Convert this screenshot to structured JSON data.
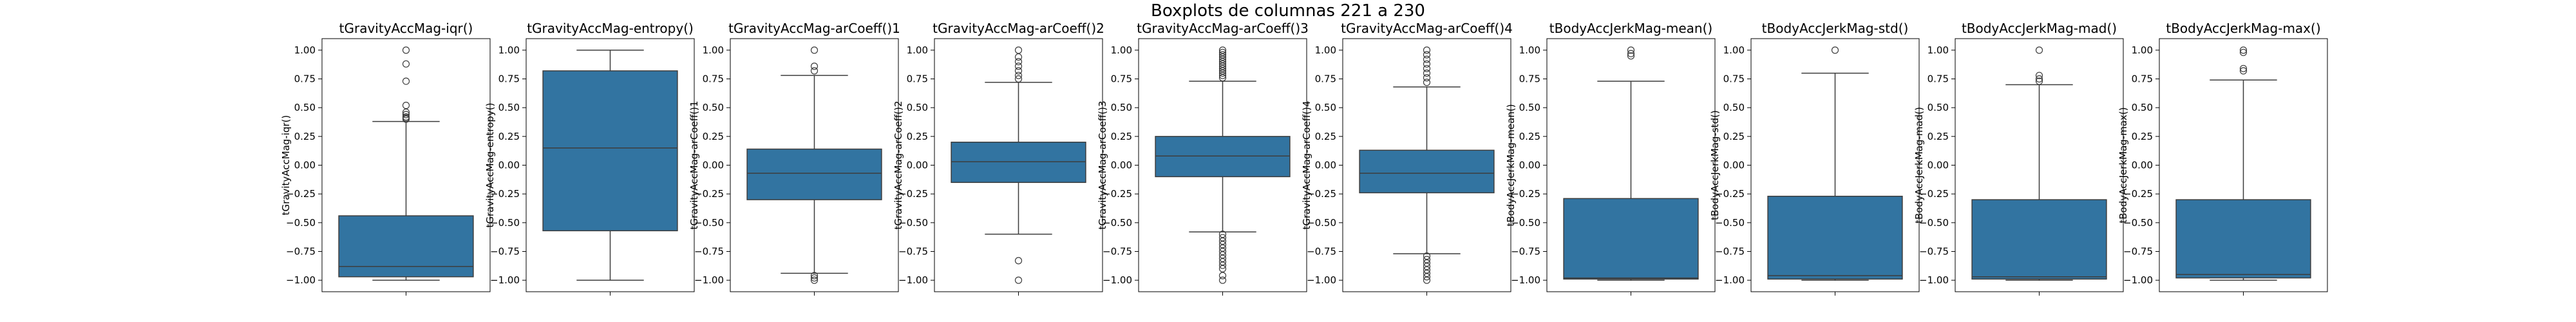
{
  "figure": {
    "suptitle": "Boxplots de columnas 221 a 230"
  },
  "chart_data": [
    {
      "type": "box",
      "title": "tGravityAccMag-iqr()",
      "ylabel": "tGravityAccMag-iqr()",
      "ylim": [
        -1.1,
        1.1
      ],
      "yticks": [
        1.0,
        0.75,
        0.5,
        0.25,
        0.0,
        -0.25,
        -0.5,
        -0.75,
        -1.0
      ],
      "yticklabels": [
        "1.00",
        "0.75",
        "0.50",
        "0.25",
        "0.00",
        "−0.25",
        "−0.50",
        "−0.75",
        "−1.00"
      ],
      "whisker_low": -1.0,
      "q1": -0.97,
      "median": -0.88,
      "q3": -0.44,
      "whisker_high": 0.38,
      "outliers": [
        1.0,
        0.88,
        0.73,
        0.52,
        0.46,
        0.44,
        0.42,
        0.41,
        0.4
      ],
      "color": "#3274a1"
    },
    {
      "type": "box",
      "title": "tGravityAccMag-entropy()",
      "ylabel": "tGravityAccMag-entropy()",
      "ylim": [
        -1.1,
        1.1
      ],
      "yticks": [
        1.0,
        0.75,
        0.5,
        0.25,
        0.0,
        -0.25,
        -0.5,
        -0.75,
        -1.0
      ],
      "yticklabels": [
        "1.00",
        "0.75",
        "0.50",
        "0.25",
        "0.00",
        "−0.25",
        "−0.50",
        "−0.75",
        "−1.00"
      ],
      "whisker_low": -1.0,
      "q1": -0.57,
      "median": 0.15,
      "q3": 0.82,
      "whisker_high": 1.0,
      "outliers": [],
      "color": "#3274a1"
    },
    {
      "type": "box",
      "title": "tGravityAccMag-arCoeff()1",
      "ylabel": "tGravityAccMag-arCoeff()1",
      "ylim": [
        -1.1,
        1.1
      ],
      "yticks": [
        1.0,
        0.75,
        0.5,
        0.25,
        0.0,
        -0.25,
        -0.5,
        -0.75,
        -1.0
      ],
      "yticklabels": [
        "1.00",
        "0.75",
        "0.50",
        "0.25",
        "0.00",
        "−0.25",
        "−0.50",
        "−0.75",
        "−1.00"
      ],
      "whisker_low": -0.94,
      "q1": -0.3,
      "median": -0.07,
      "q3": 0.14,
      "whisker_high": 0.78,
      "outliers": [
        1.0,
        0.86,
        0.82,
        -0.96,
        -0.98,
        -1.0
      ],
      "color": "#3274a1"
    },
    {
      "type": "box",
      "title": "tGravityAccMag-arCoeff()2",
      "ylabel": "tGravityAccMag-arCoeff()2",
      "ylim": [
        -1.1,
        1.1
      ],
      "yticks": [
        1.0,
        0.75,
        0.5,
        0.25,
        0.0,
        -0.25,
        -0.5,
        -0.75,
        -1.0
      ],
      "yticklabels": [
        "1.00",
        "0.75",
        "0.50",
        "0.25",
        "0.00",
        "−0.25",
        "−0.50",
        "−0.75",
        "−1.00"
      ],
      "whisker_low": -0.6,
      "q1": -0.15,
      "median": 0.03,
      "q3": 0.2,
      "whisker_high": 0.72,
      "outliers": [
        1.0,
        0.94,
        0.9,
        0.86,
        0.82,
        0.78,
        0.75,
        -0.83,
        -1.0
      ],
      "color": "#3274a1"
    },
    {
      "type": "box",
      "title": "tGravityAccMag-arCoeff()3",
      "ylabel": "tGravityAccMag-arCoeff()3",
      "ylim": [
        -1.1,
        1.1
      ],
      "yticks": [
        1.0,
        0.75,
        0.5,
        0.25,
        0.0,
        -0.25,
        -0.5,
        -0.75,
        -1.0
      ],
      "yticklabels": [
        "1.00",
        "0.75",
        "0.50",
        "0.25",
        "0.00",
        "−0.25",
        "−0.50",
        "−0.75",
        "−1.00"
      ],
      "whisker_low": -0.58,
      "q1": -0.1,
      "median": 0.08,
      "q3": 0.25,
      "whisker_high": 0.73,
      "outliers": [
        1.0,
        0.98,
        0.96,
        0.94,
        0.92,
        0.9,
        0.88,
        0.86,
        0.84,
        0.82,
        0.8,
        0.78,
        0.76,
        -0.6,
        -0.63,
        -0.66,
        -0.69,
        -0.72,
        -0.75,
        -0.78,
        -0.81,
        -0.84,
        -0.87,
        -0.9,
        -0.96,
        -1.0
      ],
      "color": "#3274a1"
    },
    {
      "type": "box",
      "title": "tGravityAccMag-arCoeff()4",
      "ylabel": "tGravityAccMag-arCoeff()4",
      "ylim": [
        -1.1,
        1.1
      ],
      "yticks": [
        1.0,
        0.75,
        0.5,
        0.25,
        0.0,
        -0.25,
        -0.5,
        -0.75,
        -1.0
      ],
      "yticklabels": [
        "1.00",
        "0.75",
        "0.50",
        "0.25",
        "0.00",
        "−0.25",
        "−0.50",
        "−0.75",
        "−1.00"
      ],
      "whisker_low": -0.77,
      "q1": -0.24,
      "median": -0.07,
      "q3": 0.13,
      "whisker_high": 0.68,
      "outliers": [
        1.0,
        0.96,
        0.92,
        0.88,
        0.84,
        0.8,
        0.76,
        0.72,
        -0.79,
        -0.82,
        -0.85,
        -0.88,
        -0.91,
        -0.94,
        -0.97,
        -1.0
      ],
      "color": "#3274a1"
    },
    {
      "type": "box",
      "title": "tBodyAccJerkMag-mean()",
      "ylabel": "tBodyAccJerkMag-mean()",
      "ylim": [
        -1.1,
        1.1
      ],
      "yticks": [
        1.0,
        0.75,
        0.5,
        0.25,
        0.0,
        -0.25,
        -0.5,
        -0.75,
        -1.0
      ],
      "yticklabels": [
        "1.00",
        "0.75",
        "0.50",
        "0.25",
        "0.00",
        "−0.25",
        "−0.50",
        "−0.75",
        "−1.00"
      ],
      "whisker_low": -1.0,
      "q1": -0.99,
      "median": -0.98,
      "q3": -0.29,
      "whisker_high": 0.73,
      "outliers": [
        1.0,
        0.97,
        0.95
      ],
      "color": "#3274a1"
    },
    {
      "type": "box",
      "title": "tBodyAccJerkMag-std()",
      "ylabel": "tBodyAccJerkMag-std()",
      "ylim": [
        -1.1,
        1.1
      ],
      "yticks": [
        1.0,
        0.75,
        0.5,
        0.25,
        0.0,
        -0.25,
        -0.5,
        -0.75,
        -1.0
      ],
      "yticklabels": [
        "1.00",
        "0.75",
        "0.50",
        "0.25",
        "0.00",
        "−0.25",
        "−0.50",
        "−0.75",
        "−1.00"
      ],
      "whisker_low": -1.0,
      "q1": -0.99,
      "median": -0.96,
      "q3": -0.27,
      "whisker_high": 0.8,
      "outliers": [
        1.0
      ],
      "color": "#3274a1"
    },
    {
      "type": "box",
      "title": "tBodyAccJerkMag-mad()",
      "ylabel": "tBodyAccJerkMag-mad()",
      "ylim": [
        -1.1,
        1.1
      ],
      "yticks": [
        1.0,
        0.75,
        0.5,
        0.25,
        0.0,
        -0.25,
        -0.5,
        -0.75,
        -1.0
      ],
      "yticklabels": [
        "1.00",
        "0.75",
        "0.50",
        "0.25",
        "0.00",
        "−0.25",
        "−0.50",
        "−0.75",
        "−1.00"
      ],
      "whisker_low": -1.0,
      "q1": -0.99,
      "median": -0.97,
      "q3": -0.3,
      "whisker_high": 0.7,
      "outliers": [
        1.0,
        0.78,
        0.75,
        0.73
      ],
      "color": "#3274a1"
    },
    {
      "type": "box",
      "title": "tBodyAccJerkMag-max()",
      "ylabel": "tBodyAccJerkMag-max()",
      "ylim": [
        -1.1,
        1.1
      ],
      "yticks": [
        1.0,
        0.75,
        0.5,
        0.25,
        0.0,
        -0.25,
        -0.5,
        -0.75,
        -1.0
      ],
      "yticklabels": [
        "1.00",
        "0.75",
        "0.50",
        "0.25",
        "0.00",
        "−0.25",
        "−0.50",
        "−0.75",
        "−1.00"
      ],
      "whisker_low": -1.0,
      "q1": -0.98,
      "median": -0.95,
      "q3": -0.3,
      "whisker_high": 0.74,
      "outliers": [
        1.0,
        0.98,
        0.84,
        0.82
      ],
      "color": "#3274a1"
    }
  ]
}
